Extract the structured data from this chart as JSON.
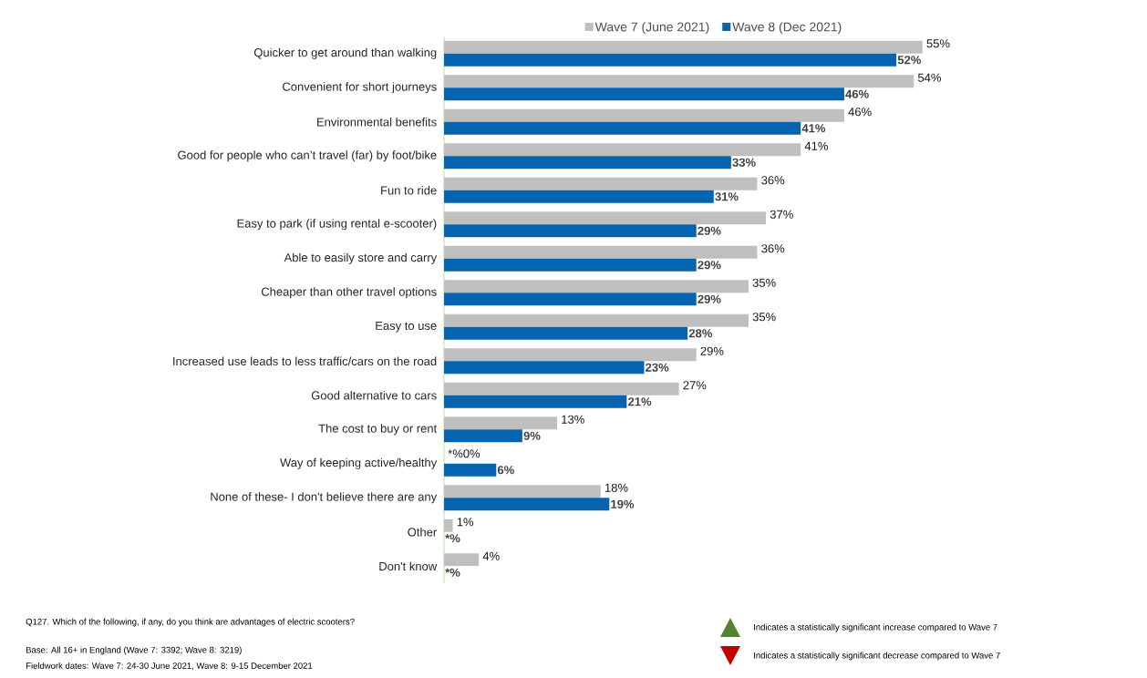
{
  "chart_data": {
    "type": "bar",
    "orientation": "horizontal",
    "categories": [
      "Quicker to get around than walking",
      "Convenient for short journeys",
      "Environmental benefits",
      "Good for people who can’t travel (far) by foot/bike",
      "Fun to ride",
      "Easy to park (if using rental e-scooter)",
      "Able to easily store and carry",
      "Cheaper than other travel options",
      "Easy to use",
      "Increased use leads to less traffic/cars on the road",
      "Good alternative to cars",
      "The cost to buy or rent",
      "Way of keeping active/healthy",
      "None of these- I don't believe there are any",
      "Other",
      "Don't know"
    ],
    "series": [
      {
        "name": "Wave 7 (June 2021)",
        "color": "#bfbfbf",
        "values": [
          55,
          54,
          46,
          41,
          36,
          37,
          36,
          35,
          35,
          29,
          27,
          13,
          0,
          18,
          1,
          4
        ],
        "value_labels": [
          "55%",
          "54%",
          "46%",
          "41%",
          "36%",
          "37%",
          "36%",
          "35%",
          "35%",
          "29%",
          "27%",
          "13%",
          "*%0%",
          "18%",
          "1%",
          "4%"
        ]
      },
      {
        "name": "Wave 8 (Dec 2021)",
        "color": "#0563b0",
        "values": [
          52,
          46,
          41,
          33,
          31,
          29,
          29,
          29,
          28,
          23,
          21,
          9,
          6,
          19,
          0,
          0
        ],
        "value_labels": [
          "52%",
          "46%",
          "41%",
          "33%",
          "31%",
          "29%",
          "29%",
          "29%",
          "28%",
          "23%",
          "21%",
          "9%",
          "6%",
          "19%",
          "*%",
          "*%"
        ]
      }
    ],
    "legend": "top",
    "tick_labels": "y",
    "annotations": [
      "Q127. Which of the following, if any, do you think are advantages of electric scooters?",
      "Base: All 16+ in England (Wave 7: 3392; Wave 8: 3219)",
      "Fieldwork dates: Wave 7: 24-30 June 2021, Wave 8: 9-15 December 2021",
      "Indicates a statistically significant increase compared to Wave 7",
      "Indicates a statistically significant decrease compared to Wave 7"
    ]
  }
}
